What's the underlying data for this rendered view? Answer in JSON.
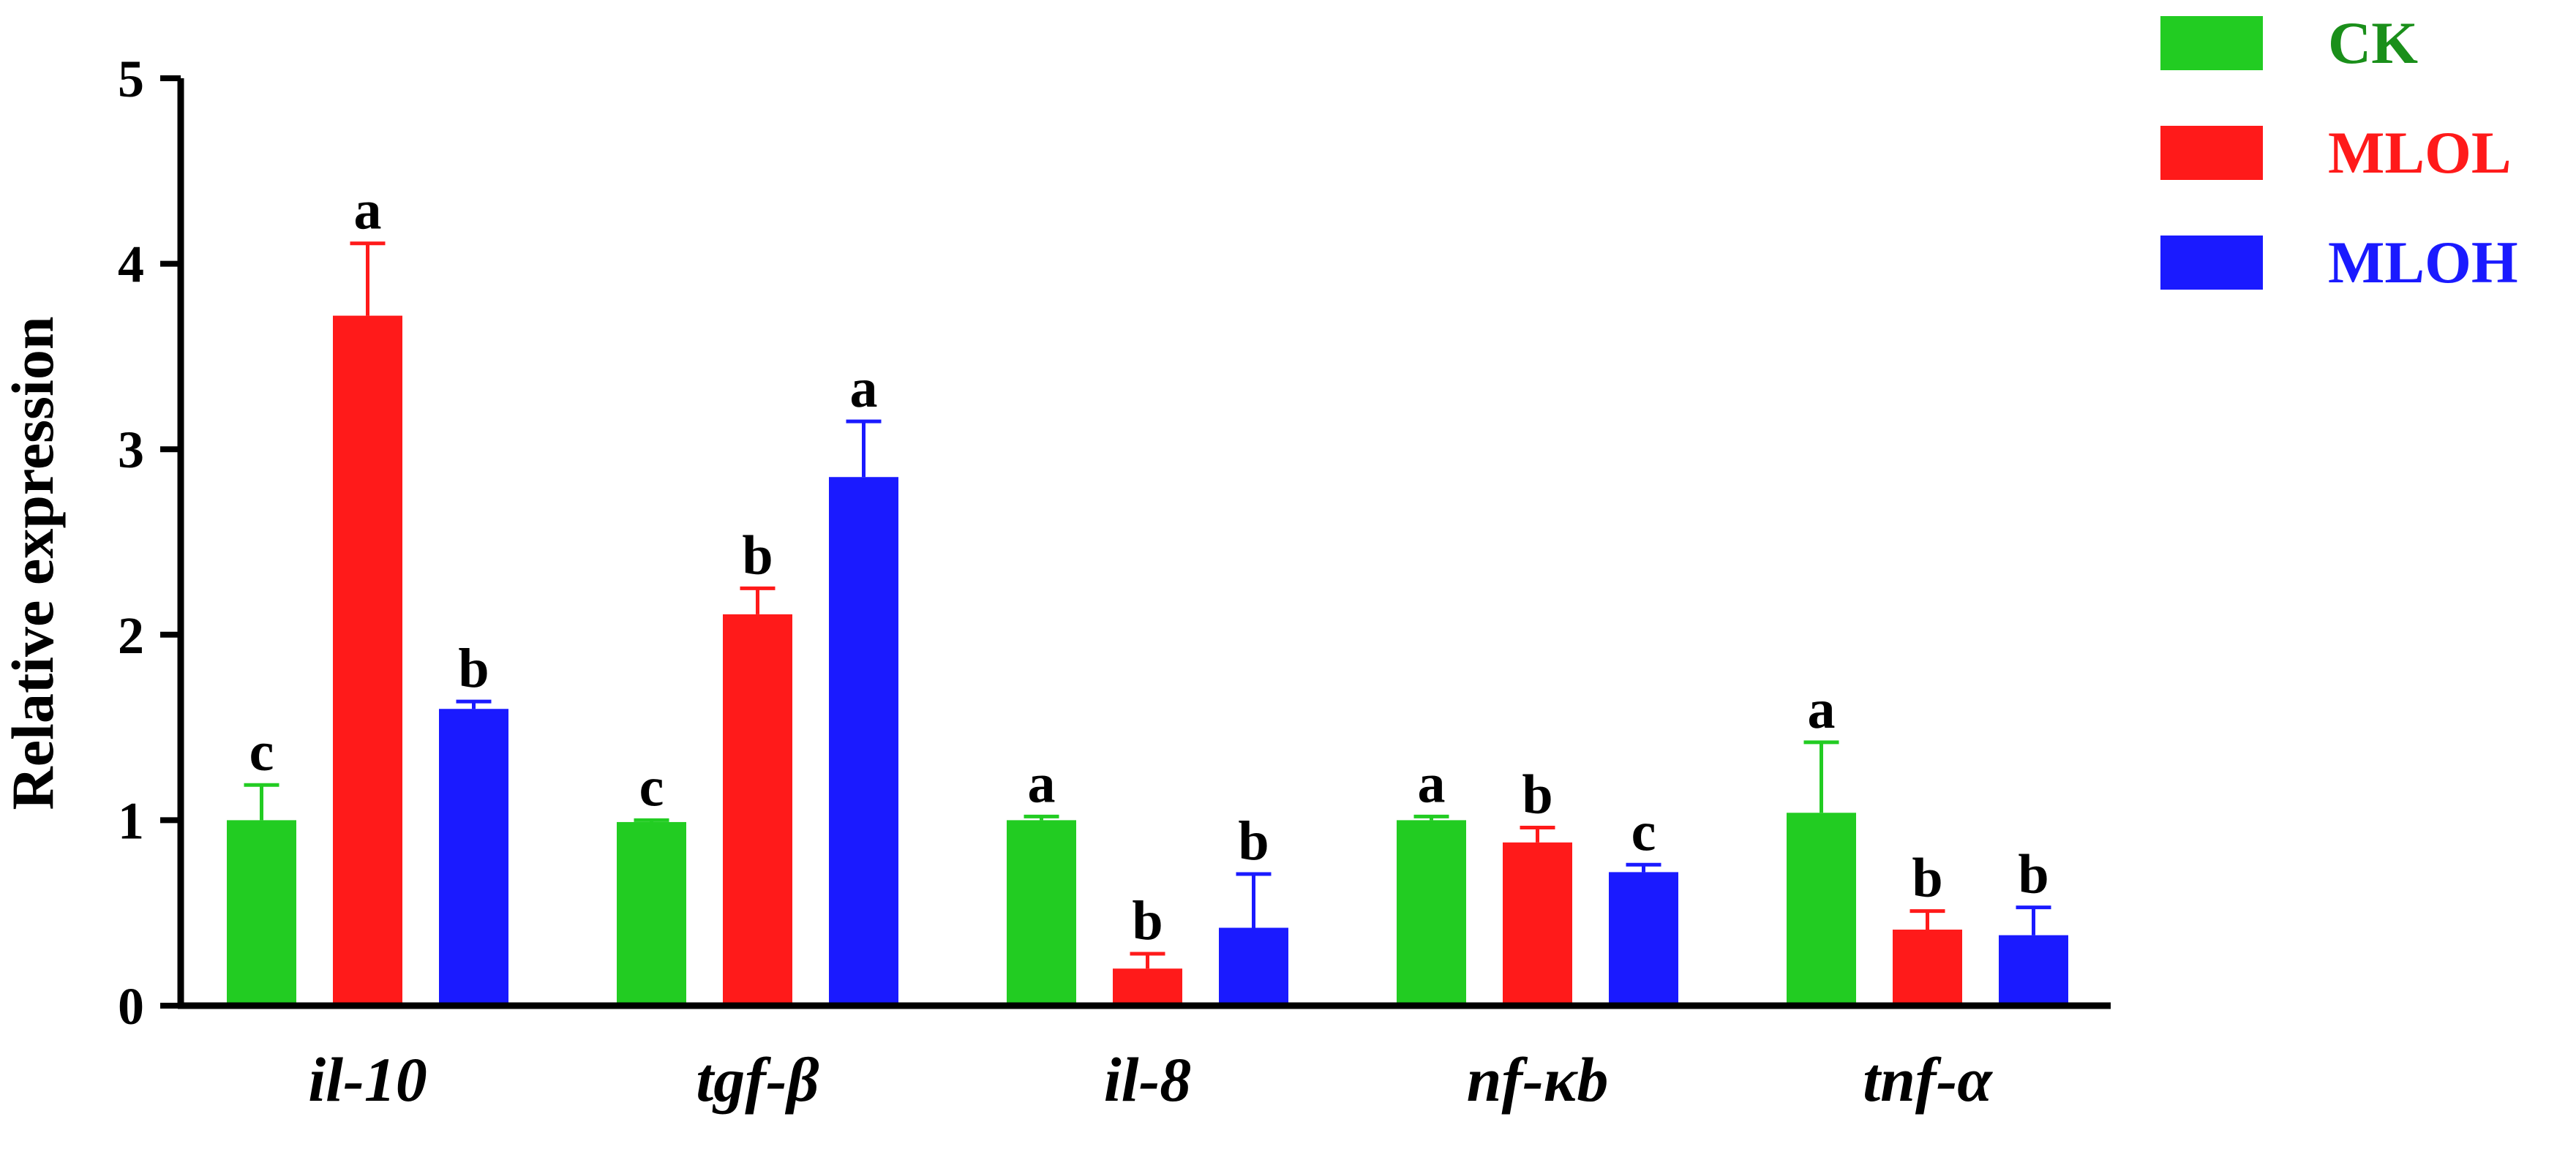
{
  "chart_data": {
    "type": "bar",
    "ylabel": "Relative expression",
    "ylim": [
      0,
      5
    ],
    "yticks": [
      "0",
      "1",
      "2",
      "3",
      "4",
      "5"
    ],
    "categories": [
      "il-10",
      "tgf-β",
      "il-8",
      "nf-κb",
      "tnf-α"
    ],
    "legend_position": "top-right",
    "grid": false,
    "series": [
      {
        "name": "CK",
        "color": "#22cc22",
        "values": [
          1.0,
          0.99,
          1.0,
          1.0,
          1.04
        ],
        "errors": [
          0.19,
          0.01,
          0.02,
          0.02,
          0.38
        ],
        "letters": [
          "c",
          "c",
          "a",
          "a",
          "a"
        ]
      },
      {
        "name": "MLOL",
        "color": "#ff1a1a",
        "values": [
          3.72,
          2.11,
          0.2,
          0.88,
          0.41
        ],
        "errors": [
          0.39,
          0.14,
          0.08,
          0.08,
          0.1
        ],
        "letters": [
          "a",
          "b",
          "b",
          "b",
          "b"
        ]
      },
      {
        "name": "MLOH",
        "color": "#1a1aff",
        "values": [
          1.6,
          2.85,
          0.42,
          0.72,
          0.38
        ],
        "errors": [
          0.04,
          0.3,
          0.29,
          0.04,
          0.15
        ],
        "letters": [
          "b",
          "a",
          "b",
          "c",
          "b"
        ]
      }
    ]
  }
}
